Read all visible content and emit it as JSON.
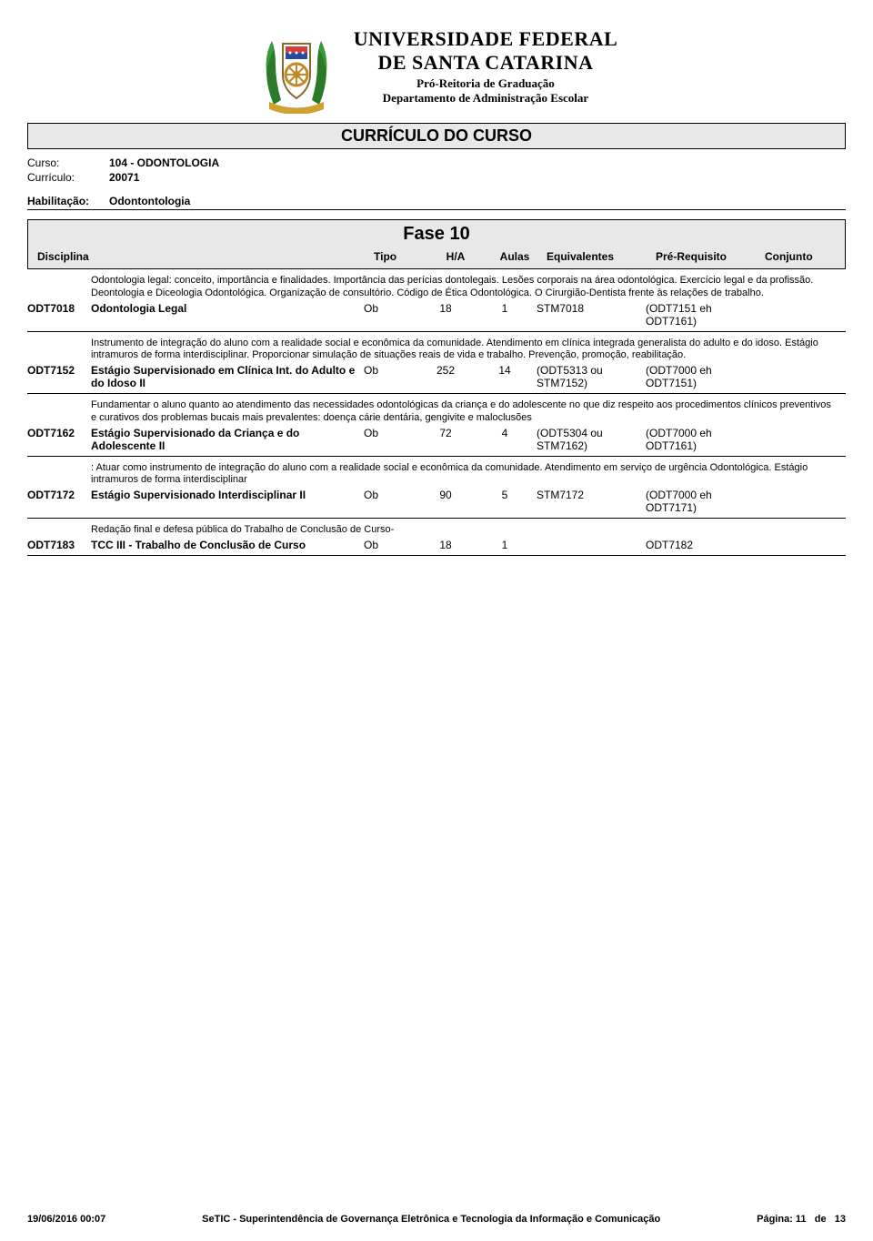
{
  "header": {
    "university_line1": "UNIVERSIDADE FEDERAL",
    "university_line2": "DE SANTA CATARINA",
    "sub1": "Pró-Reitoria de Graduação",
    "sub2": "Departamento de Administração Escolar"
  },
  "document_title": "CURRÍCULO DO CURSO",
  "meta": {
    "curso_label": "Curso:",
    "curso_value": "104 - ODONTOLOGIA",
    "curriculo_label": "Currículo:",
    "curriculo_value": "20071",
    "habilitacao_label": "Habilitação:",
    "habilitacao_value": "Odontontologia"
  },
  "phase": {
    "title": "Fase 10",
    "columns": {
      "disciplina": "Disciplina",
      "tipo": "Tipo",
      "ha": "H/A",
      "aulas": "Aulas",
      "equivalentes": "Equivalentes",
      "pre_requisito": "Pré-Requisito",
      "conjunto": "Conjunto"
    }
  },
  "courses": [
    {
      "desc": "Odontologia legal: conceito, importância e finalidades. Importância das perícias dontolegais. Lesões corporais na área odontológica. Exercício legal e  da profissão. Deontologia e Diceologia Odontológica. Organização de consultório. Código de Ética Odontológica. O Cirurgião-Dentista frente às relações de trabalho.",
      "code": "ODT7018",
      "name": "Odontologia Legal",
      "tipo": "Ob",
      "ha": "18",
      "aulas": "1",
      "equiv": "STM7018",
      "pre": "(ODT7151 eh ODT7161)",
      "conj": ""
    },
    {
      "desc": "Instrumento de integração do aluno com a realidade social e econômica da comunidade. Atendimento em clínica integrada generalista do adulto e do idoso. Estágio intramuros de forma interdisciplinar. Proporcionar simulação de situações reais de vida e trabalho. Prevenção, promoção, reabilitação.",
      "code": "ODT7152",
      "name": "Estágio Supervisionado em Clínica Int. do Adulto e do Idoso II",
      "tipo": "Ob",
      "ha": "252",
      "aulas": "14",
      "equiv": "(ODT5313 ou STM7152)",
      "pre": "(ODT7000 eh ODT7151)",
      "conj": ""
    },
    {
      "desc": "Fundamentar o aluno quanto ao atendimento das necessidades odontológicas da criança e do adolescente no que diz respeito aos procedimentos clínicos preventivos e curativos dos problemas bucais mais prevalentes: doença cárie dentária, gengivite e maloclusões",
      "code": "ODT7162",
      "name": "Estágio Supervisionado  da Criança e do Adolescente II",
      "tipo": "Ob",
      "ha": "72",
      "aulas": "4",
      "equiv": "(ODT5304 ou STM7162)",
      "pre": "(ODT7000 eh ODT7161)",
      "conj": ""
    },
    {
      "desc": ": Atuar como instrumento de integração do aluno com a realidade social e econômica da comunidade. Atendimento em serviço de urgência Odontológica. Estágio intramuros de forma interdisciplinar",
      "code": "ODT7172",
      "name": "Estágio Supervisionado Interdisciplinar II",
      "tipo": "Ob",
      "ha": "90",
      "aulas": "5",
      "equiv": "STM7172",
      "pre": "(ODT7000 eh ODT7171)",
      "conj": ""
    },
    {
      "desc": "Redação final e defesa pública do Trabalho de Conclusão de Curso-",
      "code": "ODT7183",
      "name": "TCC III - Trabalho de Conclusão de Curso",
      "tipo": "Ob",
      "ha": "18",
      "aulas": "1",
      "equiv": "",
      "pre": "ODT7182",
      "conj": ""
    }
  ],
  "footer": {
    "timestamp": "19/06/2016 00:07",
    "system": "SeTIC - Superintendência de Governança Eletrônica e Tecnologia da Informação e Comunicação",
    "page_label": "Página:",
    "page_current": "11",
    "page_sep": "de",
    "page_total": "13"
  },
  "style": {
    "page_bg": "#ffffff",
    "header_box_bg": "#e8e8e8",
    "border_color": "#000000",
    "text_color": "#000000",
    "body_fontsize": 12,
    "desc_fontsize": 11,
    "title_fontsize": 18,
    "phase_fontsize": 20,
    "column_widths": {
      "code": 70,
      "disc": 300,
      "tipo": 60,
      "ha": 60,
      "aulas": 70,
      "equiv": 120,
      "pre": 120,
      "conj": 70
    }
  }
}
